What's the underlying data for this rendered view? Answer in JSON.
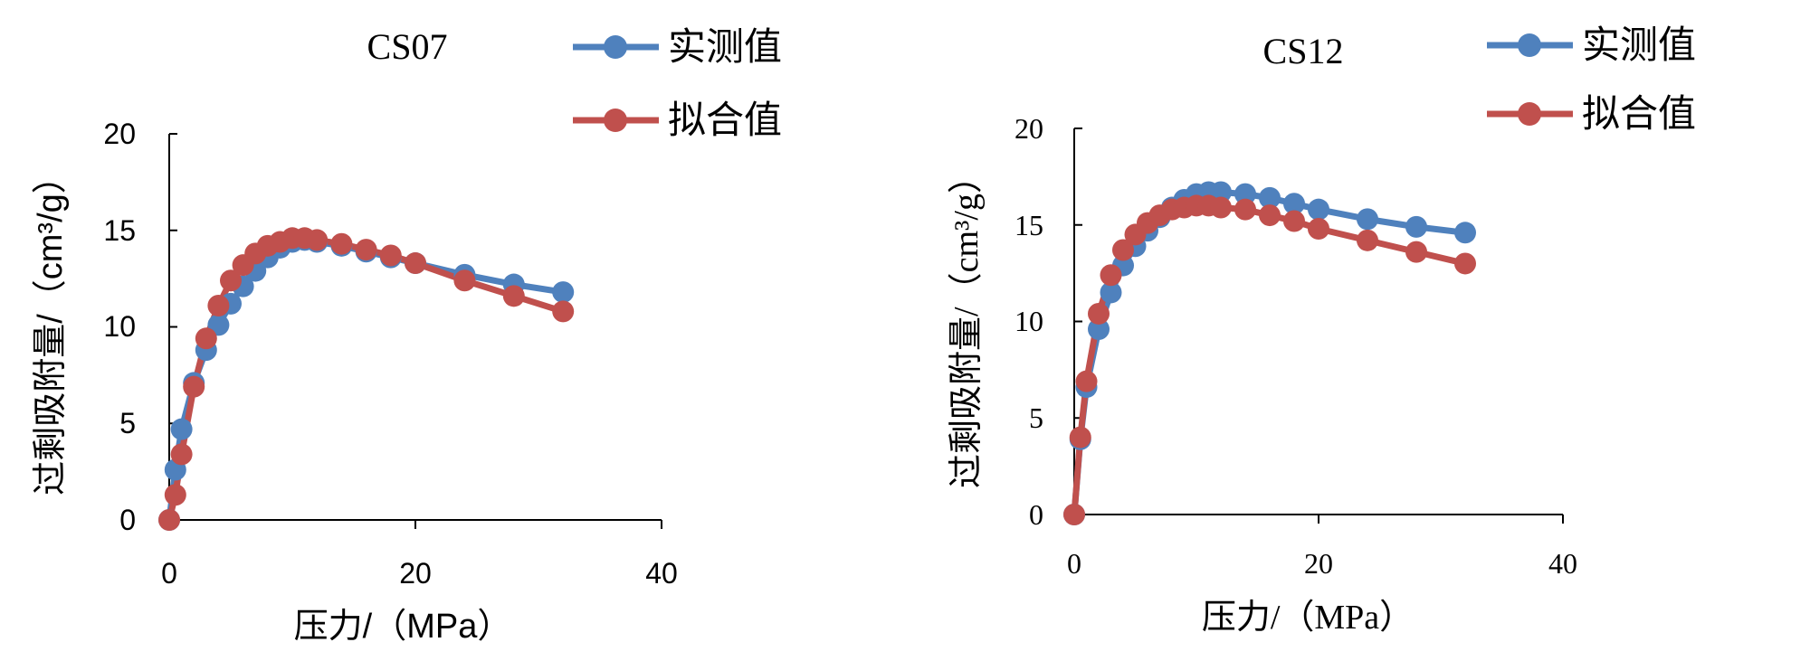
{
  "chart_data": [
    {
      "type": "line",
      "title": "CS07",
      "xlabel": "压力/（MPa）",
      "ylabel": "过剩吸附量/（cm³/g）",
      "xlim": [
        0,
        40
      ],
      "ylim": [
        0,
        20
      ],
      "xticks": [
        0,
        20,
        40
      ],
      "yticks": [
        0,
        5,
        10,
        15,
        20
      ],
      "tick_labels_x": [
        "0",
        "20",
        "40"
      ],
      "tick_labels_y": [
        "0",
        "5",
        "10",
        "15",
        "20"
      ],
      "grid": false,
      "legend": "top-right",
      "series": [
        {
          "name": "实测值",
          "color": "#4F81BD",
          "x": [
            0,
            0.5,
            1,
            2,
            3,
            4,
            5,
            6,
            7,
            8,
            9,
            10,
            11,
            12,
            14,
            16,
            18,
            20,
            24,
            28,
            32
          ],
          "y": [
            0,
            2.6,
            4.7,
            7.1,
            8.8,
            10.1,
            11.2,
            12.1,
            12.9,
            13.6,
            14.1,
            14.4,
            14.5,
            14.4,
            14.2,
            13.9,
            13.6,
            13.3,
            12.7,
            12.2,
            11.8
          ]
        },
        {
          "name": "拟合值",
          "color": "#C0504D",
          "x": [
            0,
            0.5,
            1,
            2,
            3,
            4,
            5,
            6,
            7,
            8,
            9,
            10,
            11,
            12,
            14,
            16,
            18,
            20,
            24,
            28,
            32
          ],
          "y": [
            0,
            1.3,
            3.4,
            6.9,
            9.4,
            11.1,
            12.4,
            13.2,
            13.8,
            14.2,
            14.4,
            14.6,
            14.6,
            14.5,
            14.3,
            14.0,
            13.7,
            13.3,
            12.4,
            11.6,
            10.8
          ]
        }
      ]
    },
    {
      "type": "line",
      "title": "CS12",
      "xlabel": "压力/（MPa）",
      "ylabel": "过剩吸附量/（cm³/g）",
      "xlim": [
        0,
        40
      ],
      "ylim": [
        0,
        20
      ],
      "xticks": [
        0,
        20,
        40
      ],
      "yticks": [
        0,
        5,
        10,
        15,
        20
      ],
      "tick_labels_x": [
        "0",
        "20",
        "40"
      ],
      "tick_labels_y": [
        "0",
        "5",
        "10",
        "15",
        "20"
      ],
      "grid": false,
      "legend": "top-right",
      "series": [
        {
          "name": "实测值",
          "color": "#4F81BD",
          "x": [
            0,
            0.5,
            1,
            2,
            3,
            4,
            5,
            6,
            7,
            8,
            9,
            10,
            11,
            12,
            14,
            16,
            18,
            20,
            24,
            28,
            32
          ],
          "y": [
            0,
            3.9,
            6.6,
            9.6,
            11.5,
            12.9,
            13.9,
            14.7,
            15.4,
            15.9,
            16.3,
            16.6,
            16.7,
            16.7,
            16.6,
            16.4,
            16.1,
            15.8,
            15.3,
            14.9,
            14.6
          ]
        },
        {
          "name": "拟合值",
          "color": "#C0504D",
          "x": [
            0,
            0.5,
            1,
            2,
            3,
            4,
            5,
            6,
            7,
            8,
            9,
            10,
            11,
            12,
            14,
            16,
            18,
            20,
            24,
            28,
            32
          ],
          "y": [
            0,
            4.0,
            6.9,
            10.4,
            12.4,
            13.7,
            14.5,
            15.1,
            15.5,
            15.8,
            15.9,
            16.0,
            16.0,
            15.9,
            15.8,
            15.5,
            15.2,
            14.8,
            14.2,
            13.6,
            13.0
          ]
        }
      ]
    }
  ]
}
